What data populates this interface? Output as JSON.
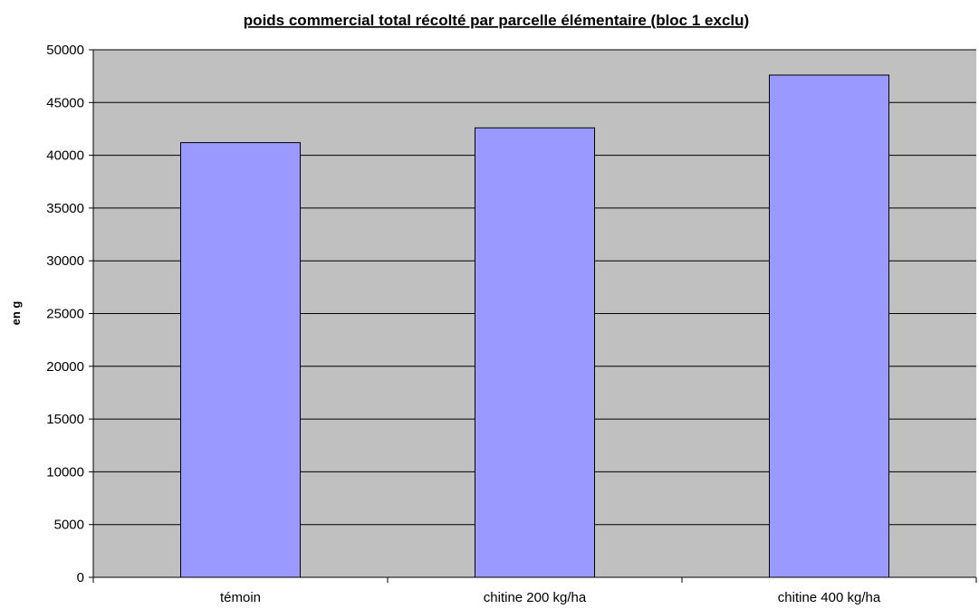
{
  "chart_data": {
    "type": "bar",
    "title": "poids commercial total récolté par parcelle élémentaire (bloc 1 exclu)",
    "xlabel": "",
    "ylabel": "en g",
    "categories": [
      "témoin",
      "chitine 200 kg/ha",
      "chitine 400 kg/ha"
    ],
    "values": [
      41200,
      42600,
      47600
    ],
    "ylim": [
      0,
      50000
    ],
    "yticks": [
      0,
      5000,
      10000,
      15000,
      20000,
      25000,
      30000,
      35000,
      40000,
      45000,
      50000
    ],
    "grid": true,
    "legend": "none",
    "colors": {
      "bar_fill": "#9999FF",
      "bar_stroke": "#000000",
      "plot_background": "#C0C0C0",
      "gridline": "#000000"
    }
  }
}
